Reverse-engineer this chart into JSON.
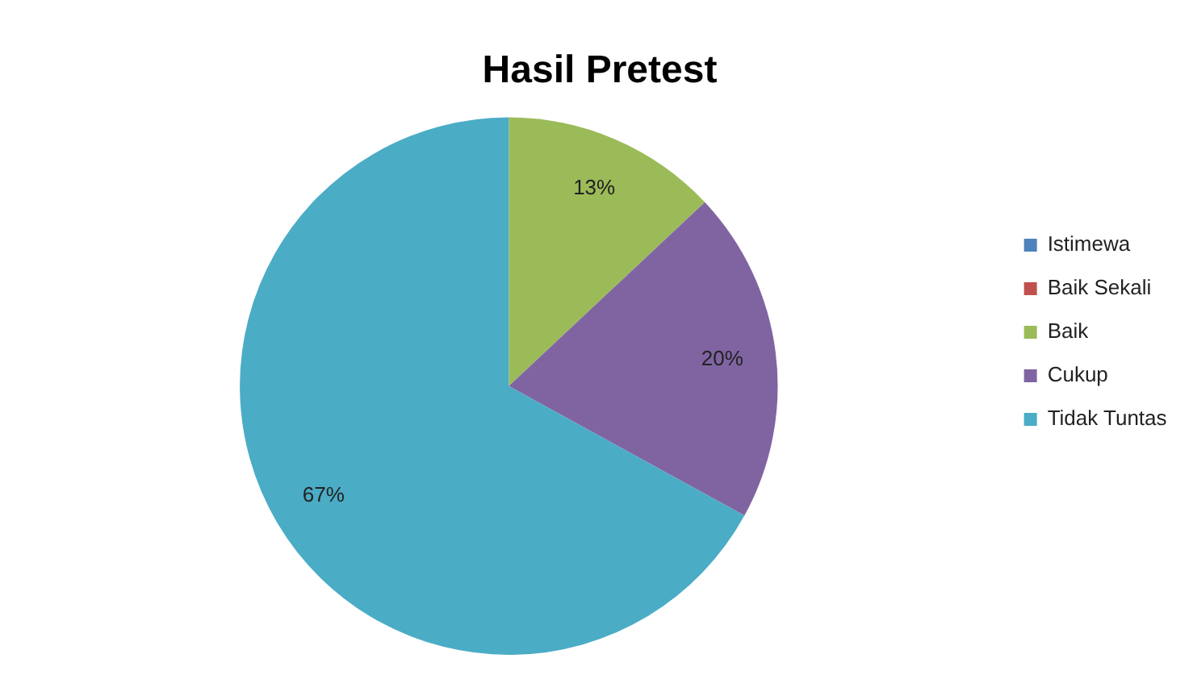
{
  "chart_data": {
    "type": "pie",
    "title": "Hasil Pretest",
    "categories": [
      "Istimewa",
      "Baik Sekali",
      "Baik",
      "Cukup",
      "Tidak Tuntas"
    ],
    "values": [
      0,
      0,
      13,
      20,
      67
    ],
    "colors": [
      "#4f81bd",
      "#c0504d",
      "#9bbb59",
      "#8064a2",
      "#4bacc6"
    ],
    "value_labels": [
      null,
      null,
      "13%",
      "20%",
      "67%"
    ],
    "legend": "right"
  }
}
